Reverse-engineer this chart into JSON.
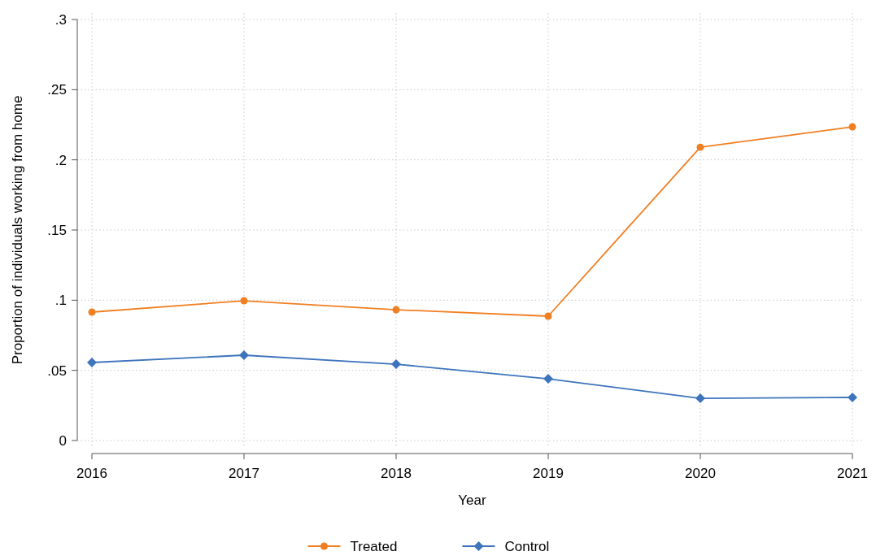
{
  "chart_data": {
    "type": "line",
    "xlabel": "Year",
    "ylabel": "Proportion of individuals working from home",
    "x": [
      2016,
      2017,
      2018,
      2019,
      2020,
      2021
    ],
    "series": [
      {
        "name": "Treated",
        "color": "#f07f22",
        "marker": "circle",
        "values": [
          0.0915,
          0.0996,
          0.0932,
          0.0886,
          0.209,
          0.2235
        ]
      },
      {
        "name": "Control",
        "color": "#3d74bc",
        "marker": "diamond",
        "values": [
          0.0556,
          0.0608,
          0.0544,
          0.044,
          0.0301,
          0.0307
        ]
      }
    ],
    "xlim": [
      2016,
      2021
    ],
    "xticks": [
      2016,
      2017,
      2018,
      2019,
      2020,
      2021
    ],
    "ylim": [
      0,
      0.3
    ],
    "yticks": [
      0,
      {
        "value": 0.05,
        "label": ".05"
      },
      {
        "value": 0.1,
        "label": ".1"
      },
      {
        "value": 0.15,
        "label": ".15"
      },
      {
        "value": 0.2,
        "label": ".2"
      },
      {
        "value": 0.25,
        "label": ".25"
      },
      {
        "value": 0.3,
        "label": ".3"
      }
    ],
    "grid": true,
    "legend": "bottom",
    "line_style": "solid"
  }
}
